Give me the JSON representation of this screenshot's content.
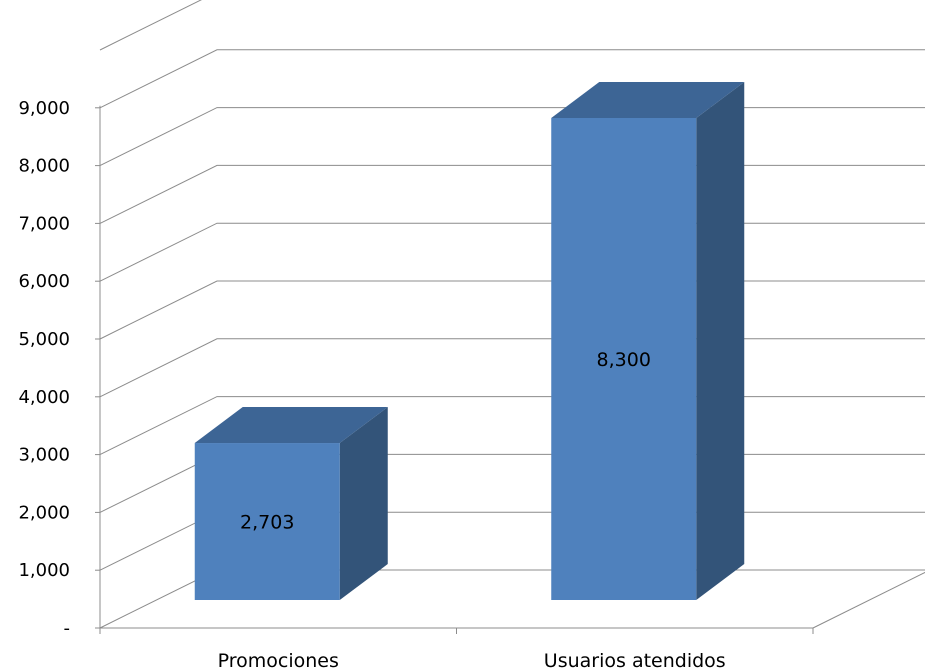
{
  "chart_data": {
    "type": "bar",
    "style": "3d-column",
    "categories": [
      "Promociones",
      "Usuarios atendidos"
    ],
    "values": [
      2703,
      8300
    ],
    "data_labels": [
      "2,703",
      "8,300"
    ],
    "ylim": [
      0,
      10000
    ],
    "y_ticks": [
      0,
      1000,
      2000,
      3000,
      4000,
      5000,
      6000,
      7000,
      8000,
      9000
    ],
    "y_tick_labels": [
      "-",
      "1,000",
      "2,000",
      "3,000",
      "4,000",
      "5,000",
      "6,000",
      "7,000",
      "8,000",
      "9,000"
    ],
    "grid": true,
    "legend": "none",
    "colors": {
      "bar_front": "#4f81bd",
      "bar_top": "#3d6595",
      "bar_side": "#335479",
      "grid": "#8c8c8c"
    }
  }
}
